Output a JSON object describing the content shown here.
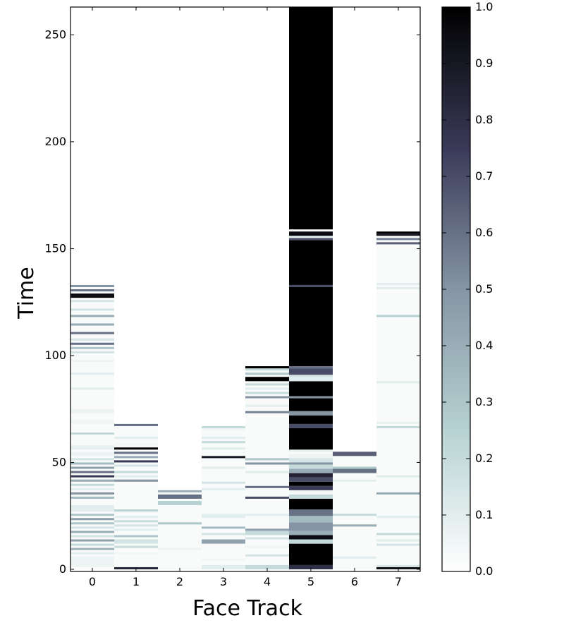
{
  "chart_data": {
    "type": "heatmap",
    "title": "",
    "xlabel": "Face Track",
    "ylabel": "Time",
    "x_categories": [
      "0",
      "1",
      "2",
      "3",
      "4",
      "5",
      "6",
      "7"
    ],
    "ylim": [
      -1,
      263
    ],
    "yticks": [
      0,
      50,
      100,
      150,
      200,
      250
    ],
    "colormap": "bone_r",
    "colorbar": {
      "range": [
        0.0,
        1.0
      ],
      "ticks": [
        "0.0",
        "0.1",
        "0.2",
        "0.3",
        "0.4",
        "0.5",
        "0.6",
        "0.7",
        "0.8",
        "0.9",
        "1.0"
      ]
    },
    "default_value": 0.02,
    "series": [
      {
        "track": 0,
        "length": 133,
        "cells": [
          [
            1,
            6,
            0.06
          ],
          [
            7,
            8,
            0.1
          ],
          [
            9,
            10,
            0.38
          ],
          [
            11,
            12,
            0.2
          ],
          [
            13,
            14,
            0.45
          ],
          [
            15,
            16,
            0.15
          ],
          [
            17,
            18,
            0.4
          ],
          [
            19,
            20,
            0.15
          ],
          [
            21,
            22,
            0.3
          ],
          [
            23,
            24,
            0.45
          ],
          [
            25,
            26,
            0.3
          ],
          [
            27,
            30,
            0.1
          ],
          [
            33,
            34,
            0.35
          ],
          [
            35,
            36,
            0.5
          ],
          [
            37,
            38,
            0.1
          ],
          [
            39,
            40,
            0.2
          ],
          [
            41,
            42,
            0.4
          ],
          [
            43,
            44,
            0.75
          ],
          [
            45,
            46,
            0.6
          ],
          [
            47,
            48,
            0.45
          ],
          [
            49,
            50,
            0.35
          ],
          [
            51,
            52,
            0.15
          ],
          [
            53,
            55,
            0.06
          ],
          [
            56,
            58,
            0.08
          ],
          [
            63,
            64,
            0.2
          ],
          [
            68,
            70,
            0.05
          ],
          [
            73,
            75,
            0.06
          ],
          [
            84,
            85,
            0.1
          ],
          [
            91,
            92,
            0.1
          ],
          [
            97,
            98,
            0.06
          ],
          [
            101,
            102,
            0.15
          ],
          [
            103,
            104,
            0.3
          ],
          [
            105,
            106,
            0.6
          ],
          [
            107,
            108,
            0.15
          ],
          [
            110,
            111,
            0.6
          ],
          [
            114,
            115,
            0.4
          ],
          [
            118,
            119,
            0.4
          ],
          [
            121,
            122,
            0.15
          ],
          [
            125,
            126,
            0.15
          ],
          [
            127,
            129,
            0.95
          ],
          [
            130,
            131,
            0.6
          ],
          [
            132,
            133,
            0.5
          ]
        ]
      },
      {
        "track": 1,
        "length": 68,
        "cells": [
          [
            0,
            1,
            0.85
          ],
          [
            7,
            8,
            0.05
          ],
          [
            10,
            11,
            0.2
          ],
          [
            12,
            14,
            0.15
          ],
          [
            15,
            16,
            0.3
          ],
          [
            18,
            19,
            0.1
          ],
          [
            20,
            21,
            0.15
          ],
          [
            22,
            23,
            0.2
          ],
          [
            24,
            25,
            0.1
          ],
          [
            27,
            28,
            0.25
          ],
          [
            41,
            42,
            0.5
          ],
          [
            43,
            44,
            0.1
          ],
          [
            45,
            46,
            0.2
          ],
          [
            48,
            49,
            0.15
          ],
          [
            50,
            51,
            0.75
          ],
          [
            52,
            53,
            0.4
          ],
          [
            54,
            55,
            0.6
          ],
          [
            56,
            57,
            1.0
          ],
          [
            58,
            59,
            0.05
          ],
          [
            61,
            62,
            0.1
          ],
          [
            67,
            68,
            0.6
          ]
        ]
      },
      {
        "track": 2,
        "length": 37,
        "cells": [
          [
            0,
            1,
            0.04
          ],
          [
            9,
            10,
            0.06
          ],
          [
            21,
            22,
            0.3
          ],
          [
            30,
            32,
            0.25
          ],
          [
            33,
            35,
            0.6
          ],
          [
            36,
            37,
            0.4
          ]
        ]
      },
      {
        "track": 3,
        "length": 67,
        "cells": [
          [
            0,
            2,
            0.1
          ],
          [
            4,
            5,
            0.05
          ],
          [
            12,
            14,
            0.45
          ],
          [
            16,
            17,
            0.15
          ],
          [
            19,
            20,
            0.35
          ],
          [
            24,
            26,
            0.1
          ],
          [
            37,
            38,
            0.1
          ],
          [
            40,
            41,
            0.15
          ],
          [
            47,
            48,
            0.1
          ],
          [
            52,
            53,
            0.9
          ],
          [
            56,
            57,
            0.1
          ],
          [
            59,
            60,
            0.2
          ],
          [
            61,
            62,
            0.1
          ],
          [
            65,
            66,
            0.05
          ],
          [
            66,
            67,
            0.2
          ]
        ]
      },
      {
        "track": 4,
        "length": 95,
        "cells": [
          [
            0,
            2,
            0.2
          ],
          [
            6,
            7,
            0.15
          ],
          [
            10,
            11,
            0.06
          ],
          [
            14,
            15,
            0.15
          ],
          [
            16,
            18,
            0.2
          ],
          [
            18,
            19,
            0.45
          ],
          [
            25,
            26,
            0.1
          ],
          [
            33,
            34,
            0.7
          ],
          [
            38,
            39,
            0.6
          ],
          [
            45,
            46,
            0.1
          ],
          [
            49,
            50,
            0.5
          ],
          [
            51,
            52,
            0.3
          ],
          [
            73,
            74,
            0.55
          ],
          [
            76,
            77,
            0.1
          ],
          [
            80,
            81,
            0.5
          ],
          [
            82,
            83,
            0.2
          ],
          [
            84,
            85,
            0.1
          ],
          [
            86,
            87,
            0.2
          ],
          [
            88,
            90,
            1.0
          ],
          [
            91,
            92,
            0.3
          ],
          [
            93,
            94,
            0.2
          ],
          [
            94,
            95,
            1.0
          ]
        ]
      },
      {
        "track": 5,
        "length": 263,
        "cells": [
          [
            0,
            2,
            0.8
          ],
          [
            2,
            12,
            1.0
          ],
          [
            12,
            14,
            0.2
          ],
          [
            14,
            16,
            0.95
          ],
          [
            16,
            18,
            0.4
          ],
          [
            18,
            22,
            0.5
          ],
          [
            22,
            25,
            0.35
          ],
          [
            25,
            28,
            0.6
          ],
          [
            28,
            33,
            1.0
          ],
          [
            33,
            35,
            0.2
          ],
          [
            35,
            37,
            0.05
          ],
          [
            37,
            39,
            0.75
          ],
          [
            39,
            41,
            1.0
          ],
          [
            41,
            43,
            0.7
          ],
          [
            43,
            45,
            0.85
          ],
          [
            45,
            47,
            0.4
          ],
          [
            47,
            49,
            0.2
          ],
          [
            49,
            50,
            0.5
          ],
          [
            50,
            52,
            0.15
          ],
          [
            52,
            54,
            0.06
          ],
          [
            55,
            56,
            0.1
          ],
          [
            56,
            66,
            1.0
          ],
          [
            66,
            68,
            0.7
          ],
          [
            68,
            72,
            1.0
          ],
          [
            72,
            74,
            0.5
          ],
          [
            74,
            80,
            1.0
          ],
          [
            80,
            81,
            0.5
          ],
          [
            81,
            88,
            1.0
          ],
          [
            88,
            90,
            0.1
          ],
          [
            90,
            91,
            0.15
          ],
          [
            91,
            94,
            0.7
          ],
          [
            94,
            95,
            0.6
          ],
          [
            95,
            132,
            1.0
          ],
          [
            132,
            133,
            0.7
          ],
          [
            133,
            154,
            1.0
          ],
          [
            154,
            155,
            0.7
          ],
          [
            155,
            156,
            0.1
          ],
          [
            156,
            158,
            0.95
          ],
          [
            159,
            263,
            1.0
          ]
        ]
      },
      {
        "track": 6,
        "length": 55,
        "cells": [
          [
            5,
            6,
            0.1
          ],
          [
            20,
            21,
            0.4
          ],
          [
            25,
            26,
            0.2
          ],
          [
            41,
            42,
            0.1
          ],
          [
            45,
            47,
            0.6
          ],
          [
            47,
            48,
            0.3
          ],
          [
            53,
            55,
            0.65
          ]
        ]
      },
      {
        "track": 7,
        "length": 158,
        "cells": [
          [
            0,
            1,
            0.95
          ],
          [
            1,
            2,
            0.15
          ],
          [
            11,
            12,
            0.15
          ],
          [
            13,
            14,
            0.1
          ],
          [
            16,
            17,
            0.2
          ],
          [
            24,
            25,
            0.1
          ],
          [
            35,
            36,
            0.4
          ],
          [
            43,
            44,
            0.1
          ],
          [
            66,
            67,
            0.2
          ],
          [
            68,
            69,
            0.08
          ],
          [
            87,
            88,
            0.1
          ],
          [
            118,
            119,
            0.25
          ],
          [
            131,
            132,
            0.1
          ],
          [
            133,
            134,
            0.1
          ],
          [
            152,
            153,
            0.65
          ],
          [
            154,
            155,
            0.55
          ],
          [
            156,
            157,
            0.9
          ],
          [
            157,
            158,
            1.0
          ]
        ]
      }
    ]
  }
}
